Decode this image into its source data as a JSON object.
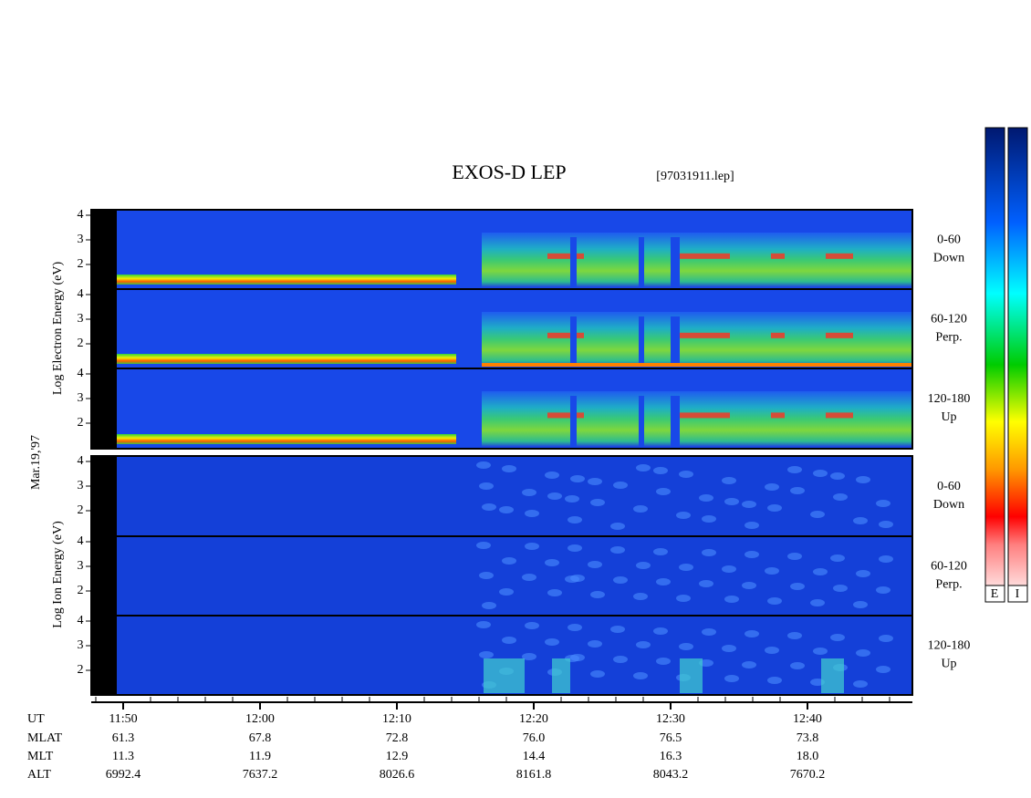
{
  "header": {
    "title": "EXOS-D LEP",
    "file": "[97031911.lep]"
  },
  "date": "Mar.19,'97",
  "electron_axis_label": "Log  Electron  Energy (eV)",
  "ion_axis_label": "Log  Ion  Energy (eV)",
  "energy_ticks": [
    "4",
    "3",
    "2"
  ],
  "pitch_angles": [
    {
      "range": "0-60",
      "direction": "Down"
    },
    {
      "range": "60-120",
      "direction": "Perp."
    },
    {
      "range": "120-180",
      "direction": "Up"
    }
  ],
  "colorbar_labels": [
    "E",
    "I"
  ],
  "time_axis": {
    "row_labels": [
      "UT",
      "MLAT",
      "MLT",
      "ALT"
    ],
    "columns": [
      [
        "11:50",
        "61.3",
        "11.3",
        "6992.4"
      ],
      [
        "12:00",
        "67.8",
        "11.9",
        "7637.2"
      ],
      [
        "12:10",
        "72.8",
        "12.9",
        "8026.6"
      ],
      [
        "12:20",
        "76.0",
        "14.4",
        "8161.8"
      ],
      [
        "12:30",
        "76.5",
        "16.3",
        "8043.2"
      ],
      [
        "12:40",
        "73.8",
        "18.0",
        "7670.2"
      ]
    ]
  }
}
